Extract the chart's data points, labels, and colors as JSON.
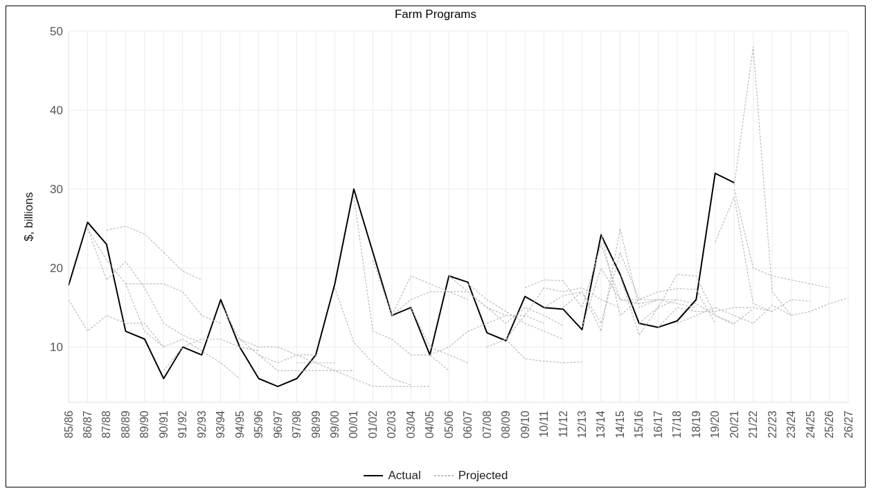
{
  "chart_data": {
    "type": "line",
    "title": "Farm Programs",
    "ylabel": "$, billions",
    "categories": [
      "85/86",
      "86/87",
      "87/88",
      "88/89",
      "89/90",
      "90/91",
      "91/92",
      "92/93",
      "93/94",
      "94/95",
      "95/96",
      "96/97",
      "97/98",
      "98/99",
      "99/00",
      "00/01",
      "01/02",
      "02/03",
      "03/04",
      "04/05",
      "05/06",
      "06/07",
      "07/08",
      "08/09",
      "09/10",
      "10/11",
      "11/12",
      "12/13",
      "13/14",
      "14/15",
      "15/16",
      "16/17",
      "17/18",
      "18/19",
      "19/20",
      "20/21",
      "21/22",
      "22/23",
      "23/24",
      "24/25",
      "25/26",
      "26/27"
    ],
    "ylim": [
      3,
      50
    ],
    "yticks": [
      10,
      20,
      30,
      40,
      50
    ],
    "grid": true,
    "legend": "bottom",
    "marker": "none",
    "series": [
      {
        "name": "Actual",
        "color": "#000000",
        "line_style": "solid",
        "values": [
          17.8,
          25.8,
          23,
          12,
          11,
          6,
          10,
          9,
          16,
          10,
          6,
          5,
          6,
          9,
          18,
          30,
          22,
          14,
          15,
          9,
          19,
          18.2,
          11.8,
          10.8,
          16.4,
          15,
          14.8,
          12.2,
          24.2,
          19.2,
          13,
          12.5,
          13.3,
          16,
          32,
          30.8,
          null,
          null,
          null,
          null,
          null,
          null
        ]
      },
      {
        "name": "Projected",
        "color": "#bbbbbb",
        "line_style": "dashed",
        "values": [
          16,
          12,
          14,
          13,
          13,
          10,
          11,
          null,
          null,
          null,
          null,
          null,
          null,
          null,
          null,
          null,
          null,
          null,
          null,
          null,
          null,
          null,
          null,
          null,
          null,
          null,
          null,
          null,
          null,
          null,
          null,
          null,
          null,
          null,
          null,
          null,
          null,
          null,
          null,
          null,
          null,
          null
        ]
      },
      {
        "color": "#bbbbbb",
        "line_style": "dashed",
        "values": [
          null,
          25,
          18.5,
          20.8,
          17.5,
          13,
          11.5,
          10.5,
          null,
          null,
          null,
          null,
          null,
          null,
          null,
          null,
          null,
          null,
          null,
          null,
          null,
          null,
          null,
          null,
          null,
          null,
          null,
          null,
          null,
          null,
          null,
          null,
          null,
          null,
          null,
          null,
          null,
          null,
          null,
          null,
          null,
          null
        ]
      },
      {
        "color": "#bbbbbb",
        "line_style": "dashed",
        "values": [
          null,
          null,
          24.8,
          25.3,
          24.3,
          22,
          19.6,
          18.5,
          null,
          null,
          null,
          null,
          null,
          null,
          null,
          null,
          null,
          null,
          null,
          null,
          null,
          null,
          null,
          null,
          null,
          null,
          null,
          null,
          null,
          null,
          null,
          null,
          null,
          null,
          null,
          null,
          null,
          null,
          null,
          null,
          null,
          null
        ]
      },
      {
        "color": "#bbbbbb",
        "line_style": "dashed",
        "values": [
          null,
          null,
          null,
          18,
          18,
          18,
          17,
          14,
          13,
          null,
          null,
          null,
          null,
          null,
          null,
          null,
          null,
          null,
          null,
          null,
          null,
          null,
          null,
          null,
          null,
          null,
          null,
          null,
          null,
          null,
          null,
          null,
          null,
          null,
          null,
          null,
          null,
          null,
          null,
          null,
          null,
          null
        ]
      },
      {
        "color": "#bbbbbb",
        "line_style": "dashed",
        "values": [
          null,
          25,
          21,
          18,
          12,
          10,
          null,
          null,
          null,
          null,
          null,
          null,
          null,
          null,
          null,
          null,
          null,
          null,
          null,
          null,
          null,
          null,
          null,
          null,
          null,
          null,
          null,
          null,
          null,
          null,
          null,
          null,
          null,
          null,
          null,
          null,
          null,
          null,
          null,
          null,
          null,
          null
        ]
      },
      {
        "color": "#bbbbbb",
        "line_style": "dashed",
        "values": [
          null,
          null,
          null,
          null,
          null,
          7,
          10,
          11,
          11,
          10,
          9.5,
          null,
          null,
          null,
          null,
          null,
          null,
          null,
          null,
          null,
          null,
          null,
          null,
          null,
          null,
          null,
          null,
          null,
          null,
          null,
          null,
          null,
          null,
          null,
          null,
          null,
          null,
          null,
          null,
          null,
          null,
          null
        ]
      },
      {
        "color": "#bbbbbb",
        "line_style": "dashed",
        "values": [
          null,
          null,
          null,
          null,
          null,
          null,
          11,
          9.5,
          8,
          6,
          null,
          null,
          null,
          null,
          null,
          null,
          null,
          null,
          null,
          null,
          null,
          null,
          null,
          null,
          null,
          null,
          null,
          null,
          null,
          null,
          null,
          null,
          null,
          null,
          null,
          null,
          null,
          null,
          null,
          null,
          null,
          null
        ]
      },
      {
        "color": "#bbbbbb",
        "line_style": "dashed",
        "values": [
          null,
          null,
          null,
          null,
          null,
          null,
          null,
          null,
          15.5,
          11,
          10,
          10,
          9,
          9,
          null,
          null,
          null,
          null,
          null,
          null,
          null,
          null,
          null,
          null,
          null,
          null,
          null,
          null,
          null,
          null,
          null,
          null,
          null,
          null,
          null,
          null,
          null,
          null,
          null,
          null,
          null,
          null
        ]
      },
      {
        "color": "#bbbbbb",
        "line_style": "dashed",
        "values": [
          null,
          null,
          null,
          null,
          null,
          null,
          null,
          null,
          null,
          11,
          9,
          8,
          9,
          8,
          8,
          null,
          null,
          null,
          null,
          null,
          null,
          null,
          null,
          null,
          null,
          null,
          null,
          null,
          null,
          null,
          null,
          null,
          null,
          null,
          null,
          null,
          null,
          null,
          null,
          null,
          null,
          null
        ]
      },
      {
        "color": "#bbbbbb",
        "line_style": "dashed",
        "values": [
          null,
          null,
          null,
          null,
          null,
          null,
          null,
          null,
          null,
          null,
          9,
          7,
          7,
          7,
          7,
          7,
          null,
          null,
          null,
          null,
          null,
          null,
          null,
          null,
          null,
          null,
          null,
          null,
          null,
          null,
          null,
          null,
          null,
          null,
          null,
          null,
          null,
          null,
          null,
          null,
          null,
          null
        ]
      },
      {
        "color": "#bbbbbb",
        "line_style": "dashed",
        "values": [
          null,
          null,
          null,
          null,
          null,
          null,
          null,
          null,
          null,
          null,
          null,
          null,
          8,
          8,
          7,
          6,
          5,
          5,
          5,
          5,
          null,
          null,
          null,
          null,
          null,
          null,
          null,
          null,
          null,
          null,
          null,
          null,
          null,
          null,
          null,
          null,
          null,
          null,
          null,
          null,
          null,
          null
        ]
      },
      {
        "color": "#bbbbbb",
        "line_style": "dashed",
        "values": [
          null,
          null,
          null,
          null,
          null,
          null,
          null,
          null,
          null,
          null,
          null,
          null,
          null,
          null,
          17.5,
          10.6,
          8,
          6,
          5.2,
          null,
          null,
          null,
          null,
          null,
          null,
          null,
          null,
          null,
          null,
          null,
          null,
          null,
          null,
          null,
          null,
          null,
          null,
          null,
          null,
          null,
          null,
          null
        ]
      },
      {
        "color": "#bbbbbb",
        "line_style": "dashed",
        "values": [
          null,
          null,
          null,
          null,
          null,
          null,
          null,
          null,
          null,
          null,
          null,
          null,
          null,
          null,
          null,
          29,
          12,
          11,
          9,
          9,
          7,
          null,
          null,
          null,
          null,
          null,
          null,
          null,
          null,
          null,
          null,
          null,
          null,
          null,
          null,
          null,
          null,
          null,
          null,
          null,
          null,
          null
        ]
      },
      {
        "color": "#bbbbbb",
        "line_style": "dashed",
        "values": [
          null,
          null,
          null,
          null,
          null,
          null,
          null,
          null,
          null,
          null,
          null,
          null,
          null,
          null,
          null,
          null,
          21,
          14,
          19,
          18,
          17,
          16,
          null,
          null,
          null,
          null,
          null,
          null,
          null,
          null,
          null,
          null,
          null,
          null,
          null,
          null,
          null,
          null,
          null,
          null,
          null,
          null
        ]
      },
      {
        "color": "#bbbbbb",
        "line_style": "dashed",
        "values": [
          null,
          null,
          null,
          null,
          null,
          null,
          null,
          null,
          null,
          null,
          null,
          null,
          null,
          null,
          null,
          null,
          null,
          14,
          16,
          17,
          17,
          17,
          15,
          14,
          null,
          null,
          null,
          null,
          null,
          null,
          null,
          null,
          null,
          null,
          null,
          null,
          null,
          null,
          null,
          null,
          null,
          null
        ]
      },
      {
        "color": "#bbbbbb",
        "line_style": "dashed",
        "values": [
          null,
          null,
          null,
          null,
          null,
          null,
          null,
          null,
          null,
          null,
          null,
          null,
          null,
          null,
          null,
          null,
          null,
          null,
          15,
          10,
          9,
          8,
          null,
          null,
          null,
          null,
          null,
          null,
          null,
          null,
          null,
          null,
          null,
          null,
          null,
          null,
          null,
          null,
          null,
          null,
          null,
          null
        ]
      },
      {
        "color": "#bbbbbb",
        "line_style": "dashed",
        "values": [
          null,
          null,
          null,
          null,
          null,
          null,
          null,
          null,
          null,
          null,
          null,
          null,
          null,
          null,
          null,
          null,
          null,
          null,
          null,
          9,
          10,
          12,
          13,
          14,
          14,
          13,
          null,
          null,
          null,
          null,
          null,
          null,
          null,
          null,
          null,
          null,
          null,
          null,
          null,
          null,
          null,
          null
        ]
      },
      {
        "color": "#bbbbbb",
        "line_style": "dashed",
        "values": [
          null,
          null,
          null,
          null,
          null,
          null,
          null,
          null,
          null,
          null,
          null,
          null,
          null,
          null,
          null,
          null,
          null,
          null,
          null,
          null,
          19,
          17,
          15,
          13,
          15,
          14,
          12.7,
          null,
          null,
          null,
          null,
          null,
          null,
          null,
          null,
          null,
          null,
          null,
          null,
          null,
          null,
          null
        ]
      },
      {
        "color": "#bbbbbb",
        "line_style": "dashed",
        "values": [
          null,
          null,
          null,
          null,
          null,
          null,
          null,
          null,
          null,
          null,
          null,
          null,
          null,
          null,
          null,
          null,
          null,
          null,
          null,
          null,
          null,
          18,
          16,
          14.5,
          13,
          12,
          11,
          null,
          null,
          null,
          null,
          null,
          null,
          null,
          null,
          null,
          null,
          null,
          null,
          null,
          null,
          null
        ]
      },
      {
        "color": "#bbbbbb",
        "line_style": "dashed",
        "values": [
          null,
          null,
          null,
          null,
          null,
          null,
          null,
          null,
          null,
          null,
          null,
          null,
          null,
          null,
          null,
          null,
          null,
          null,
          null,
          null,
          null,
          null,
          10,
          11,
          8.5,
          8.2,
          8,
          8.1,
          null,
          null,
          null,
          null,
          null,
          null,
          null,
          null,
          null,
          null,
          null,
          null,
          null,
          null
        ]
      },
      {
        "color": "#bbbbbb",
        "line_style": "dashed",
        "values": [
          null,
          null,
          null,
          null,
          null,
          null,
          null,
          null,
          null,
          null,
          null,
          null,
          null,
          null,
          null,
          null,
          null,
          null,
          null,
          null,
          null,
          null,
          null,
          11,
          14,
          17.5,
          17,
          17.5,
          16,
          15,
          null,
          null,
          null,
          null,
          null,
          null,
          null,
          null,
          null,
          null,
          null,
          null
        ]
      },
      {
        "color": "#bbbbbb",
        "line_style": "dashed",
        "values": [
          null,
          null,
          null,
          null,
          null,
          null,
          null,
          null,
          null,
          null,
          null,
          null,
          null,
          null,
          null,
          null,
          null,
          null,
          null,
          null,
          null,
          null,
          null,
          null,
          17.5,
          18.5,
          18.4,
          15,
          23,
          16,
          16,
          null,
          null,
          null,
          null,
          null,
          null,
          null,
          null,
          null,
          null,
          null
        ]
      },
      {
        "color": "#bbbbbb",
        "line_style": "dashed",
        "values": [
          null,
          null,
          null,
          null,
          null,
          null,
          null,
          null,
          null,
          null,
          null,
          null,
          null,
          null,
          null,
          null,
          null,
          null,
          null,
          null,
          null,
          null,
          null,
          null,
          null,
          15,
          16.5,
          17,
          13,
          22,
          16,
          16,
          null,
          null,
          null,
          null,
          null,
          null,
          null,
          null,
          null,
          null
        ]
      },
      {
        "color": "#bbbbbb",
        "line_style": "dashed",
        "values": [
          null,
          null,
          null,
          null,
          null,
          null,
          null,
          null,
          null,
          null,
          null,
          null,
          null,
          null,
          null,
          null,
          null,
          null,
          null,
          null,
          null,
          null,
          null,
          null,
          null,
          null,
          15,
          17,
          12,
          25,
          15,
          16,
          16,
          null,
          null,
          null,
          null,
          null,
          null,
          null,
          null,
          null
        ]
      },
      {
        "color": "#bbbbbb",
        "line_style": "dashed",
        "values": [
          null,
          null,
          null,
          null,
          null,
          null,
          null,
          null,
          null,
          null,
          null,
          null,
          null,
          null,
          null,
          null,
          null,
          null,
          null,
          null,
          null,
          null,
          null,
          null,
          null,
          null,
          null,
          12.5,
          20,
          16,
          15.5,
          16,
          15.5,
          15,
          null,
          null,
          null,
          null,
          null,
          null,
          null,
          null
        ]
      },
      {
        "color": "#bbbbbb",
        "line_style": "dashed",
        "values": [
          null,
          null,
          null,
          null,
          null,
          null,
          null,
          null,
          null,
          null,
          null,
          null,
          null,
          null,
          null,
          null,
          null,
          null,
          null,
          null,
          null,
          null,
          null,
          null,
          null,
          null,
          null,
          null,
          24.5,
          14,
          16,
          17,
          17.4,
          17.3,
          13,
          null,
          null,
          null,
          null,
          null,
          null,
          null
        ]
      },
      {
        "color": "#bbbbbb",
        "line_style": "dashed",
        "values": [
          null,
          null,
          null,
          null,
          null,
          null,
          null,
          null,
          null,
          null,
          null,
          null,
          null,
          null,
          null,
          null,
          null,
          null,
          null,
          null,
          null,
          null,
          null,
          null,
          null,
          null,
          null,
          null,
          null,
          19,
          11.5,
          15,
          19.2,
          19,
          14,
          12.8,
          null,
          null,
          null,
          null,
          null,
          null
        ]
      },
      {
        "color": "#bbbbbb",
        "line_style": "dashed",
        "values": [
          null,
          null,
          null,
          null,
          null,
          null,
          null,
          null,
          null,
          null,
          null,
          null,
          null,
          null,
          null,
          null,
          null,
          null,
          null,
          null,
          null,
          null,
          null,
          null,
          null,
          null,
          null,
          null,
          null,
          null,
          13,
          15,
          16,
          15.5,
          14,
          13,
          14.8,
          null,
          null,
          null,
          null,
          null
        ]
      },
      {
        "color": "#bbbbbb",
        "line_style": "dashed",
        "values": [
          null,
          null,
          null,
          null,
          null,
          null,
          null,
          null,
          null,
          null,
          null,
          null,
          null,
          null,
          null,
          null,
          null,
          null,
          null,
          null,
          null,
          null,
          null,
          null,
          null,
          null,
          null,
          null,
          null,
          null,
          null,
          12.5,
          15,
          14.5,
          14.5,
          15,
          15,
          14.5,
          null,
          null,
          null,
          null
        ]
      },
      {
        "color": "#bbbbbb",
        "line_style": "dashed",
        "values": [
          null,
          null,
          null,
          null,
          null,
          null,
          null,
          null,
          null,
          null,
          null,
          null,
          null,
          null,
          null,
          null,
          null,
          null,
          null,
          null,
          null,
          null,
          null,
          null,
          null,
          null,
          null,
          null,
          null,
          null,
          null,
          null,
          13,
          14,
          15,
          14,
          13,
          15.3,
          14,
          null,
          null,
          null
        ]
      },
      {
        "color": "#bbbbbb",
        "line_style": "dashed",
        "values": [
          null,
          null,
          null,
          null,
          null,
          null,
          null,
          null,
          null,
          null,
          null,
          null,
          null,
          null,
          null,
          null,
          null,
          null,
          null,
          null,
          null,
          null,
          null,
          null,
          null,
          null,
          null,
          null,
          null,
          null,
          null,
          null,
          null,
          null,
          23.3,
          29,
          15.5,
          14.5,
          16,
          15.8,
          null,
          null
        ]
      },
      {
        "color": "#bbbbbb",
        "line_style": "dashed",
        "values": [
          null,
          null,
          null,
          null,
          null,
          null,
          null,
          null,
          null,
          null,
          null,
          null,
          null,
          null,
          null,
          null,
          null,
          null,
          null,
          null,
          null,
          null,
          null,
          null,
          null,
          null,
          null,
          null,
          null,
          null,
          null,
          null,
          null,
          null,
          null,
          30,
          20,
          19,
          18.5,
          18,
          17.5,
          null
        ]
      },
      {
        "color": "#bbbbbb",
        "line_style": "dashed",
        "values": [
          null,
          null,
          null,
          null,
          null,
          null,
          null,
          null,
          null,
          null,
          null,
          null,
          null,
          null,
          null,
          null,
          null,
          null,
          null,
          null,
          null,
          null,
          null,
          null,
          null,
          null,
          null,
          null,
          null,
          null,
          null,
          null,
          null,
          null,
          null,
          30.5,
          48,
          17,
          14,
          14.5,
          15.5,
          16.2
        ]
      }
    ]
  }
}
